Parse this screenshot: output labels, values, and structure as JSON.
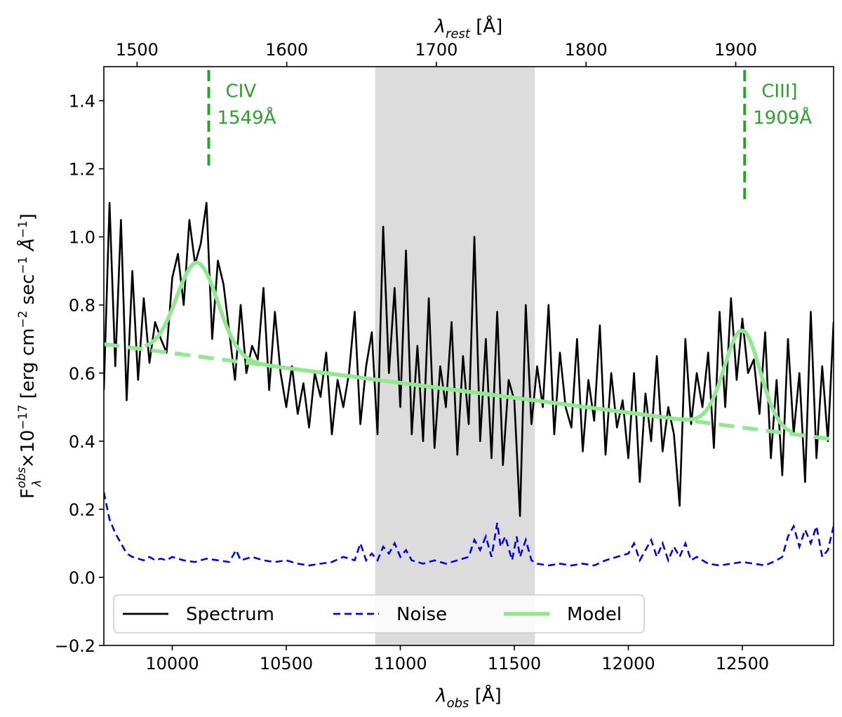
{
  "chart_data": {
    "type": "line",
    "title": "",
    "xlabel": "λ_obs [Å]",
    "ylabel": "F_λ^obs ×10^−17 [erg cm^−2 sec^−1 Å^−1]",
    "x2label": "λ_rest [Å]",
    "xlim": [
      9700,
      12900
    ],
    "ylim": [
      -0.2,
      1.5
    ],
    "x2lim": [
      1477.8,
      1965.4
    ],
    "xticks": [
      10000,
      10500,
      11000,
      11500,
      12000,
      12500
    ],
    "yticks": [
      -0.2,
      0.0,
      0.2,
      0.4,
      0.6,
      0.8,
      1.0,
      1.2,
      1.4
    ],
    "ytick_labels": [
      "−0.2",
      "0.0",
      "0.2",
      "0.4",
      "0.6",
      "0.8",
      "1.0",
      "1.2",
      "1.4"
    ],
    "x2ticks": [
      1500,
      1600,
      1700,
      1800,
      1900
    ],
    "grid": false,
    "legend_position": "bottom-left",
    "shaded_region": {
      "x": [
        10890,
        11590
      ],
      "color": "#dcdcdc"
    },
    "emission_lines": [
      {
        "name": "CIV",
        "wavelength_label": "1549Å",
        "x_obs": 10160,
        "y_range": [
          1.2,
          1.49
        ]
      },
      {
        "name": "CIII]",
        "wavelength_label": "1909Å",
        "x_obs": 12510,
        "y_range": [
          1.1,
          1.49
        ]
      }
    ],
    "model": {
      "continuum_start": [
        9700,
        0.685
      ],
      "continuum_end": [
        12900,
        0.405
      ],
      "lines": [
        {
          "center": 10110,
          "amplitude": 0.275,
          "sigma": 90,
          "x_range": [
            9880,
            10330
          ]
        },
        {
          "center": 12500,
          "amplitude": 0.285,
          "sigma": 78,
          "x_range": [
            12280,
            12720
          ]
        }
      ]
    },
    "series": [
      {
        "name": "Spectrum",
        "color": "#000000",
        "style": "solid",
        "x": [
          9700,
          9725,
          9750,
          9775,
          9800,
          9825,
          9850,
          9875,
          9900,
          9925,
          9950,
          9975,
          10000,
          10025,
          10050,
          10075,
          10100,
          10125,
          10150,
          10175,
          10200,
          10225,
          10250,
          10275,
          10300,
          10325,
          10350,
          10375,
          10400,
          10425,
          10450,
          10475,
          10500,
          10525,
          10550,
          10575,
          10600,
          10625,
          10650,
          10675,
          10700,
          10725,
          10750,
          10775,
          10800,
          10825,
          10850,
          10875,
          10900,
          10925,
          10950,
          10975,
          11000,
          11025,
          11050,
          11075,
          11100,
          11125,
          11150,
          11175,
          11200,
          11225,
          11250,
          11275,
          11300,
          11325,
          11350,
          11375,
          11400,
          11425,
          11450,
          11475,
          11500,
          11525,
          11550,
          11575,
          11600,
          11625,
          11650,
          11675,
          11700,
          11725,
          11750,
          11775,
          11800,
          11825,
          11850,
          11875,
          11900,
          11925,
          11950,
          11975,
          12000,
          12025,
          12050,
          12075,
          12100,
          12125,
          12150,
          12175,
          12200,
          12225,
          12250,
          12275,
          12300,
          12325,
          12350,
          12375,
          12400,
          12425,
          12450,
          12475,
          12500,
          12525,
          12550,
          12575,
          12600,
          12625,
          12650,
          12675,
          12700,
          12725,
          12750,
          12775,
          12800,
          12825,
          12850,
          12875,
          12900
        ],
        "y": [
          0.55,
          1.1,
          0.62,
          1.05,
          0.52,
          0.9,
          0.58,
          0.82,
          0.63,
          0.75,
          0.7,
          0.66,
          0.88,
          0.95,
          0.8,
          1.05,
          0.92,
          0.98,
          1.1,
          0.7,
          0.93,
          0.86,
          0.72,
          0.58,
          0.8,
          0.6,
          0.68,
          0.64,
          0.85,
          0.55,
          0.78,
          0.6,
          0.5,
          0.62,
          0.48,
          0.57,
          0.44,
          0.6,
          0.53,
          0.66,
          0.42,
          0.58,
          0.5,
          0.6,
          0.78,
          0.45,
          0.62,
          0.72,
          0.42,
          1.03,
          0.6,
          0.85,
          0.5,
          0.96,
          0.42,
          0.68,
          0.4,
          0.82,
          0.38,
          0.62,
          0.5,
          0.75,
          0.36,
          0.65,
          0.45,
          1.0,
          0.4,
          0.7,
          0.35,
          0.78,
          0.33,
          0.58,
          0.52,
          0.18,
          0.8,
          0.45,
          0.62,
          0.5,
          0.8,
          0.42,
          0.66,
          0.5,
          0.44,
          0.7,
          0.37,
          0.58,
          0.46,
          0.74,
          0.36,
          0.6,
          0.44,
          0.52,
          0.35,
          0.6,
          0.28,
          0.54,
          0.4,
          0.65,
          0.37,
          0.5,
          0.42,
          0.21,
          0.7,
          0.45,
          0.6,
          0.5,
          0.66,
          0.38,
          0.78,
          0.5,
          0.82,
          0.58,
          0.76,
          0.6,
          0.64,
          0.48,
          0.72,
          0.35,
          0.58,
          0.3,
          0.7,
          0.42,
          0.6,
          0.28,
          0.78,
          0.35,
          0.62,
          0.4,
          0.75
        ]
      },
      {
        "name": "Noise",
        "color": "#0000ee",
        "style": "dashed",
        "x": [
          9700,
          9725,
          9750,
          9775,
          9800,
          9825,
          9850,
          9875,
          9900,
          9925,
          9950,
          9975,
          10000,
          10050,
          10100,
          10150,
          10200,
          10250,
          10280,
          10300,
          10350,
          10400,
          10450,
          10500,
          10550,
          10600,
          10650,
          10700,
          10750,
          10800,
          10825,
          10850,
          10875,
          10900,
          10925,
          10950,
          10975,
          11000,
          11025,
          11050,
          11100,
          11150,
          11200,
          11250,
          11300,
          11325,
          11350,
          11375,
          11400,
          11425,
          11440,
          11460,
          11490,
          11510,
          11525,
          11550,
          11575,
          11600,
          11650,
          11700,
          11750,
          11800,
          11850,
          11900,
          11950,
          12000,
          12025,
          12050,
          12075,
          12100,
          12125,
          12150,
          12175,
          12200,
          12225,
          12250,
          12275,
          12300,
          12350,
          12400,
          12450,
          12500,
          12550,
          12600,
          12650,
          12675,
          12700,
          12725,
          12750,
          12775,
          12800,
          12825,
          12850,
          12875,
          12900
        ],
        "y": [
          0.25,
          0.17,
          0.13,
          0.1,
          0.07,
          0.06,
          0.055,
          0.05,
          0.06,
          0.05,
          0.055,
          0.05,
          0.06,
          0.05,
          0.045,
          0.055,
          0.05,
          0.045,
          0.08,
          0.05,
          0.06,
          0.05,
          0.045,
          0.05,
          0.04,
          0.035,
          0.04,
          0.045,
          0.06,
          0.05,
          0.1,
          0.05,
          0.07,
          0.05,
          0.09,
          0.07,
          0.1,
          0.06,
          0.08,
          0.05,
          0.04,
          0.05,
          0.04,
          0.05,
          0.06,
          0.11,
          0.08,
          0.12,
          0.06,
          0.16,
          0.09,
          0.12,
          0.05,
          0.12,
          0.06,
          0.11,
          0.05,
          0.04,
          0.035,
          0.04,
          0.035,
          0.04,
          0.035,
          0.05,
          0.06,
          0.07,
          0.1,
          0.05,
          0.08,
          0.11,
          0.06,
          0.1,
          0.05,
          0.09,
          0.06,
          0.1,
          0.05,
          0.06,
          0.04,
          0.035,
          0.04,
          0.045,
          0.04,
          0.035,
          0.05,
          0.06,
          0.12,
          0.15,
          0.09,
          0.14,
          0.1,
          0.15,
          0.06,
          0.08,
          0.15
        ]
      },
      {
        "name": "Model",
        "color": "#90e890",
        "style": "solid"
      }
    ],
    "legend": [
      {
        "name": "Spectrum",
        "color": "#000000",
        "style": "solid"
      },
      {
        "name": "Noise",
        "color": "#0000ee",
        "style": "dashed"
      },
      {
        "name": "Model",
        "color": "#90e890",
        "style": "solid"
      }
    ],
    "colors": {
      "emission_line": "#2ca02c",
      "shade": "#dcdcdc"
    }
  }
}
